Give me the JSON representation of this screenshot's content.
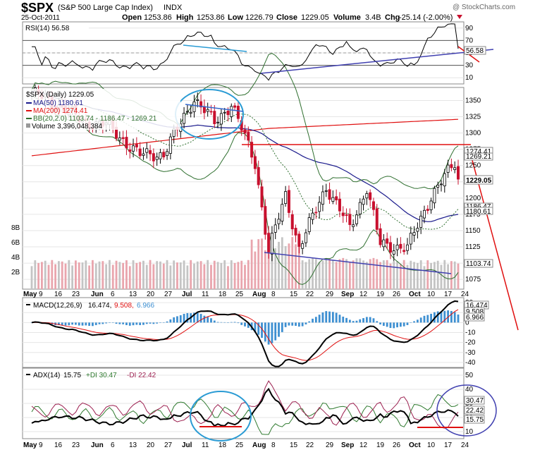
{
  "header": {
    "symbol": "$SPX",
    "name": "(S&P 500 Large Cap Index)",
    "exchange": "INDX",
    "date": "25-Oct-2011",
    "watermark": "@ StockCharts.com",
    "open_label": "Open",
    "open": "1253.86",
    "high_label": "High",
    "high": "1253.86",
    "low_label": "Low",
    "low": "1226.79",
    "close_label": "Close",
    "close": "1229.05",
    "volume_label": "Volume",
    "volume": "3.4B",
    "chg_label": "Chg",
    "chg": "-25.14 (-2.00%)"
  },
  "colors": {
    "up": "#000000",
    "down": "#c8102e",
    "ma50": "#1a1a8c",
    "ma200": "#e01010",
    "bb": "#2f6f2f",
    "macd_hist": "#3d8fd1",
    "annot_blue": "#3366cc",
    "annot_cyan": "#2a9bd4",
    "annot_purple": "#4040b0"
  },
  "x_axis": {
    "labels": [
      "May",
      "9",
      "16",
      "23",
      "Jun",
      "6",
      "13",
      "20",
      "27",
      "Jul",
      "11",
      "18",
      "25",
      "Aug",
      "8",
      "15",
      "22",
      "29",
      "Sep",
      "12",
      "19",
      "26",
      "Oct",
      "10",
      "17",
      "24"
    ],
    "bold": [
      "May",
      "Jun",
      "Jul",
      "Aug",
      "Sep",
      "Oct"
    ]
  },
  "rsi_panel": {
    "legend": "RSI(14) 56.58",
    "ticks": [
      "90",
      "70",
      "50",
      "30",
      "10"
    ],
    "last_label": "56.58",
    "last_value": 56.58
  },
  "price_panel": {
    "legend_title": "$SPX (Daily) 1229.05",
    "legend_ma50": "MA(50) 1180.61",
    "legend_ma200": "MA(200) 1274.41",
    "legend_bb": "BB(20,2.0) 1103.74 - 1186.47 - 1269.21",
    "legend_volume": "Volume 3,396,048,384",
    "ticks": [
      "1350",
      "1325",
      "1300",
      "1275",
      "1250",
      "1225",
      "1200",
      "1175",
      "1150",
      "1125",
      "1100",
      "1075"
    ],
    "volume_ticks": [
      "8B",
      "6B",
      "4B",
      "2B"
    ],
    "labels": {
      "bb_upper": "1269.21",
      "ma200": "1274.41",
      "close": "1229.05",
      "bb_mid": "1186.47",
      "ma50": "1180.61",
      "bb_lower": "1103.74"
    }
  },
  "macd_panel": {
    "legend_name": "MACD(12,26,9)",
    "legend_macd": "16.474,",
    "legend_signal": "9.508,",
    "legend_hist": "6.966",
    "ticks": [
      "20",
      "10",
      "0",
      "-10",
      "-20",
      "-30",
      "-40"
    ],
    "labels": {
      "macd": "16.474",
      "signal": "9.508",
      "hist": "6.966"
    }
  },
  "adx_panel": {
    "legend_name": "ADX(14)",
    "legend_adx": "15.75",
    "legend_pdi": "+DI 30.47",
    "legend_mdi": "-DI 22.42",
    "ticks": [
      "50",
      "40",
      "30",
      "20",
      "10"
    ],
    "labels": {
      "pdi": "30.47",
      "mdi": "22.42",
      "adx": "15.75"
    }
  },
  "chart_data": [
    {
      "type": "candlestick",
      "title": "$SPX (Daily) 1229.05",
      "y_range": [
        1060,
        1370
      ],
      "date_range": [
        "2011-05-02",
        "2011-10-25"
      ],
      "last_close": 1229.05,
      "series": [
        {
          "name": "MA(50)",
          "last": 1180.61
        },
        {
          "name": "MA(200)",
          "last": 1274.41
        },
        {
          "name": "BB(20,2.0)",
          "lower": 1103.74,
          "mid": 1186.47,
          "upper": 1269.21
        },
        {
          "name": "Volume",
          "last": 3396048384
        }
      ],
      "approx_close_path": [
        [
          "2011-05-02",
          1362
        ],
        [
          "2011-05-16",
          1337
        ],
        [
          "2011-05-23",
          1317
        ],
        [
          "2011-06-01",
          1313
        ],
        [
          "2011-06-15",
          1266
        ],
        [
          "2011-06-24",
          1268
        ],
        [
          "2011-07-07",
          1353
        ],
        [
          "2011-07-15",
          1316
        ],
        [
          "2011-07-22",
          1345
        ],
        [
          "2011-08-02",
          1254
        ],
        [
          "2011-08-08",
          1119
        ],
        [
          "2011-08-15",
          1204
        ],
        [
          "2011-08-19",
          1123
        ],
        [
          "2011-08-31",
          1218
        ],
        [
          "2011-09-09",
          1154
        ],
        [
          "2011-09-16",
          1216
        ],
        [
          "2011-09-22",
          1129
        ],
        [
          "2011-10-04",
          1123
        ],
        [
          "2011-10-13",
          1203
        ],
        [
          "2011-10-24",
          1254
        ],
        [
          "2011-10-25",
          1229.05
        ]
      ]
    },
    {
      "type": "line",
      "title": "RSI(14) 56.58",
      "ylim": [
        0,
        100
      ],
      "series": [
        {
          "name": "RSI(14)",
          "last": 56.58
        }
      ]
    },
    {
      "type": "line",
      "title": "MACD(12,26,9)",
      "ylim": [
        -45,
        25
      ],
      "series": [
        {
          "name": "MACD",
          "last": 16.474
        },
        {
          "name": "Signal",
          "last": 9.508
        },
        {
          "name": "Histogram",
          "last": 6.966
        }
      ]
    },
    {
      "type": "line",
      "title": "ADX(14)",
      "ylim": [
        5,
        55
      ],
      "series": [
        {
          "name": "ADX",
          "last": 15.75
        },
        {
          "name": "+DI",
          "last": 30.47
        },
        {
          "name": "-DI",
          "last": 22.42
        }
      ]
    }
  ]
}
